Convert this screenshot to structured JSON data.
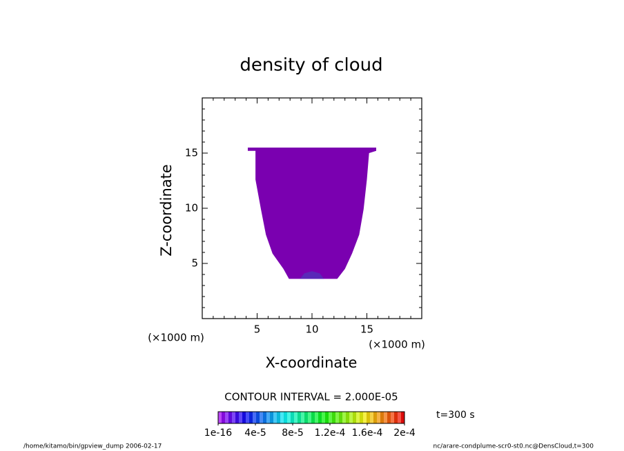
{
  "chart_data": {
    "type": "contour",
    "title": "density of cloud",
    "x_label": "X-coordinate",
    "y_label": "Z-coordinate",
    "x_unit": "(×1000 m)",
    "y_unit": "(×1000 m)",
    "xlim": [
      0,
      20
    ],
    "ylim": [
      0,
      20
    ],
    "xticks": [
      5,
      10,
      15
    ],
    "yticks": [
      5,
      10,
      15
    ],
    "regions": [
      {
        "color": "#7a00b0",
        "x": [
          4.15,
          15.85,
          15.85,
          15.2,
          15.0,
          14.7,
          14.3,
          13.65,
          13.0,
          12.3,
          7.9,
          7.4,
          6.4,
          5.8,
          5.35,
          4.85,
          4.85,
          4.15
        ],
        "z": [
          15.5,
          15.5,
          15.2,
          15.0,
          12.6,
          9.9,
          7.6,
          5.9,
          4.5,
          3.6,
          3.6,
          4.5,
          5.9,
          7.6,
          9.9,
          12.6,
          15.2,
          15.2
        ]
      },
      {
        "color": "#5a28b8",
        "x": [
          8.9,
          9.3,
          10.0,
          10.7,
          11.1
        ],
        "z": [
          3.6,
          4.1,
          4.3,
          4.1,
          3.6
        ]
      }
    ],
    "contour_interval": "CONTOUR INTERVAL = 2.000E-05",
    "time": "t=300 s",
    "colorbar": {
      "lim": [
        0,
        0.0002
      ],
      "ticks": [
        {
          "value": 1e-16,
          "label": "1e-16"
        },
        {
          "value": 4e-05,
          "label": "4e-5"
        },
        {
          "value": 8e-05,
          "label": "8e-5"
        },
        {
          "value": 0.00012,
          "label": "1.2e-4"
        },
        {
          "value": 0.00016,
          "label": "1.6e-4"
        },
        {
          "value": 0.0002,
          "label": "2e-4"
        }
      ]
    },
    "footer_left": "/home/kitamo/bin/gpview_dump  2006-02-17",
    "footer_right": "nc/arare-condplume-scr0-st0.nc@DensCloud,t=300"
  }
}
